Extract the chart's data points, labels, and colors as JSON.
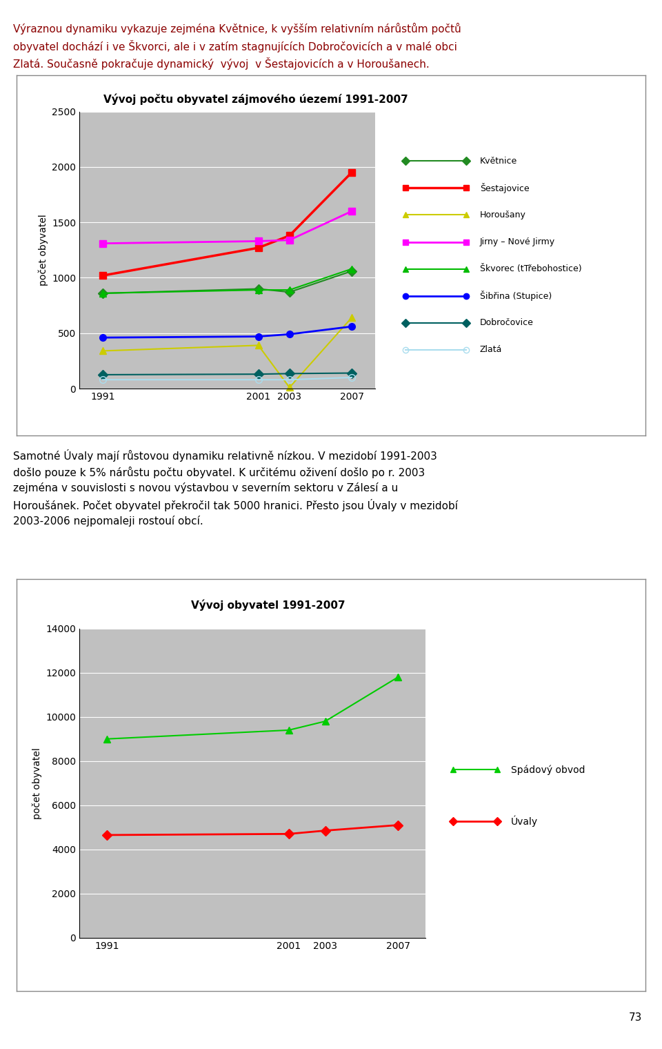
{
  "page_bg": "#ffffff",
  "text_color_red": "#8b0000",
  "text_color_black": "#000000",
  "text1": "Výraznou dynamiku vykazuje zejména Květnice, k vyšším relativním nárůstům počtů\nobyvatel dochází i ve Škvorci, ale i v zatím stagnujících Dobročovicích a v malé obci\nZlatá. Současně pokračuje dynamický  vývoj  v Šestajovicích a v Horoušanech.",
  "text2": "Samotné Úvaly mají růstovou dynamiku relativně nízkou. V mezidobí 1991-2003\ndošlo pouze k 5% nárůstu počtu obyvatel. K určitému oživení došlo po r. 2003\nzejména v souvislosti s novou výstavbou v severním sektoru v Zálesí a u\nHoroušánek. Počet obyvatel překročil tak 5000 hranici. Přesto jsou Úvaly v mezidobí\n2003-2006 nejpomaleji rostouí obcí.",
  "page_num": "73",
  "chart1": {
    "title": "Vývoj počtu obyvatel zájmového úezemí 1991-2007",
    "ylabel": "počet obyvatel",
    "years": [
      1991,
      2001,
      2003,
      2007
    ],
    "ylim": [
      0,
      2500
    ],
    "yticks": [
      0,
      500,
      1000,
      1500,
      2000,
      2500
    ],
    "bg_color": "#c0c0c0",
    "series": [
      {
        "label": "Květnice",
        "color": "#228B22",
        "marker": "D",
        "marker_fill": "#228B22",
        "linestyle": "-",
        "linewidth": 1.5,
        "values": [
          860,
          900,
          870,
          1060
        ]
      },
      {
        "label": "Šestajovice",
        "color": "#ff0000",
        "marker": "s",
        "marker_fill": "#ff0000",
        "linestyle": "-",
        "linewidth": 2.5,
        "values": [
          1020,
          1270,
          1380,
          1950
        ]
      },
      {
        "label": "Horoušany",
        "color": "#cccc00",
        "marker": "^",
        "marker_fill": "#cccc00",
        "linestyle": "-",
        "linewidth": 1.5,
        "values": [
          340,
          390,
          10,
          640
        ]
      },
      {
        "label": "Jirny – Nové Jirmy",
        "color": "#ff00ff",
        "marker": "s",
        "marker_fill": "#ff00ff",
        "linestyle": "-",
        "linewidth": 2.0,
        "values": [
          1310,
          1330,
          1340,
          1600
        ]
      },
      {
        "label": "Škvorec (tTřebohostice)",
        "color": "#00bb00",
        "marker": "^",
        "marker_fill": "#00bb00",
        "linestyle": "-",
        "linewidth": 1.5,
        "values": [
          860,
          890,
          890,
          1080
        ]
      },
      {
        "label": "Šibřina (Stupice)",
        "color": "#0000ff",
        "marker": "o",
        "marker_fill": "#0000ff",
        "linestyle": "-",
        "linewidth": 2.0,
        "values": [
          460,
          470,
          490,
          560
        ]
      },
      {
        "label": "Dobročovice",
        "color": "#006060",
        "marker": "D",
        "marker_fill": "#006060",
        "linestyle": "-",
        "linewidth": 1.5,
        "values": [
          125,
          130,
          135,
          140
        ]
      },
      {
        "label": "Zlatá",
        "color": "#aaddee",
        "marker": "o",
        "marker_fill": "none",
        "linestyle": "-",
        "linewidth": 1.5,
        "values": [
          80,
          80,
          80,
          100
        ]
      }
    ]
  },
  "chart2": {
    "title": "Vývoj obyvatel 1991-2007",
    "ylabel": "počet obyvatel",
    "years": [
      1991,
      2001,
      2003,
      2007
    ],
    "ylim": [
      0,
      14000
    ],
    "yticks": [
      0,
      2000,
      4000,
      6000,
      8000,
      10000,
      12000,
      14000
    ],
    "bg_color": "#c0c0c0",
    "series": [
      {
        "label": "Spádový obvod",
        "color": "#00cc00",
        "marker": "^",
        "marker_fill": "#00cc00",
        "linestyle": "-",
        "linewidth": 1.5,
        "values": [
          9000,
          9400,
          9800,
          11800
        ]
      },
      {
        "label": "Úvaly",
        "color": "#ff0000",
        "marker": "D",
        "marker_fill": "#ff0000",
        "linestyle": "-",
        "linewidth": 2.0,
        "values": [
          4650,
          4700,
          4850,
          5100
        ]
      }
    ]
  }
}
